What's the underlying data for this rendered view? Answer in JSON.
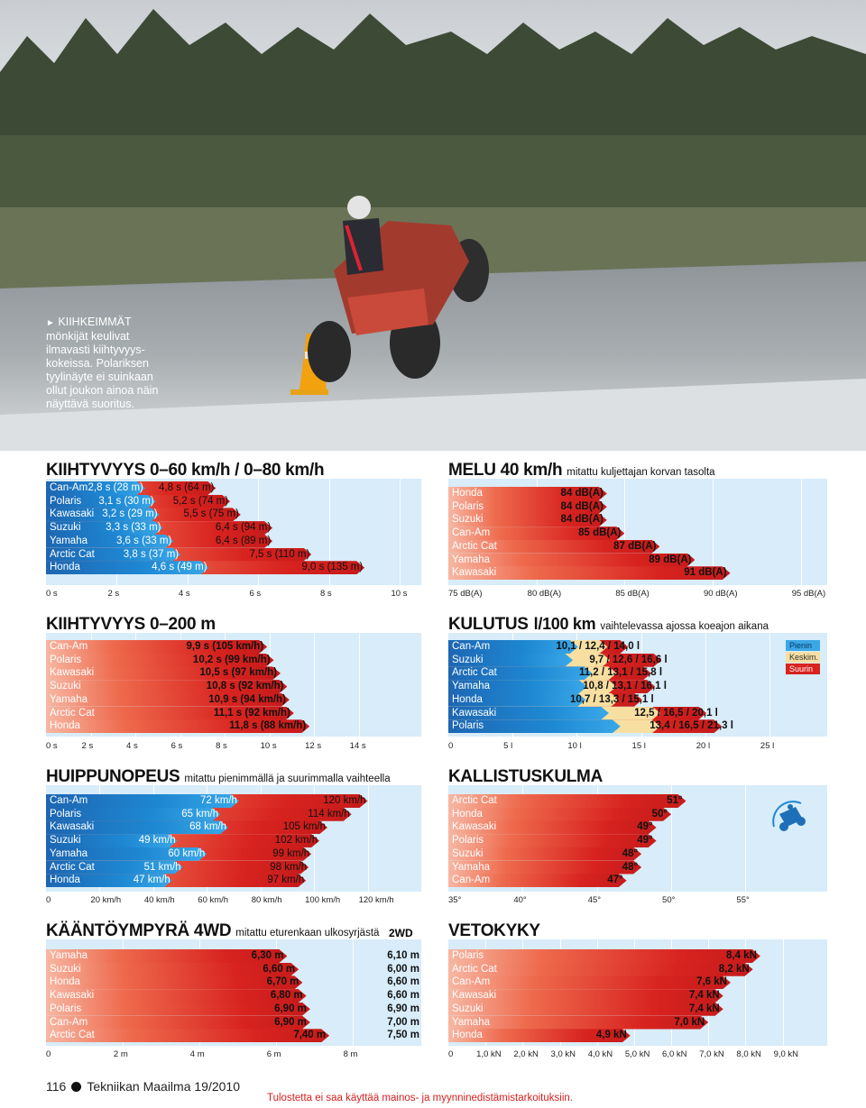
{
  "caption": {
    "marker": "►",
    "text": "KIIHKEIMMÄT mönkijät keulivat ilmavasti kiihtyvyys­kokeissa. Polariksen tyylinäyte ei suin­kaan ollut joukon ainoa näin näyttävä suoritus."
  },
  "footer": {
    "page": "116",
    "magazine": "Tekniikan Maailma 19/2010",
    "notice": "Tulostetta ei saa käyttää mainos- ja myynninedistämistarkoituksiin."
  },
  "colors": {
    "panel": "#d8ecf9",
    "red": "#d8231f",
    "blue": "#1e88d3",
    "notice": "#d81e1e"
  },
  "icons": {
    "tilt": "atv-tilt-icon",
    "photo": "atv-rider-photo"
  },
  "chart_data": [
    {
      "id": "kiihtyvyys60",
      "type": "bar",
      "title": "KIIHTYVYYS 0–60 km/h / 0–80 km/h",
      "categories": [
        "Can-Am",
        "Polaris",
        "Kawasaki",
        "Suzuki",
        "Yamaha",
        "Arctic Cat",
        "Honda"
      ],
      "series": [
        {
          "values": [
            2.8,
            3.1,
            3.2,
            3.3,
            3.6,
            3.8,
            4.6
          ],
          "labels": [
            "2,8 s (28 m)",
            "3,1 s (30 m)",
            "3,2 s (29 m)",
            "3,3 s (33 m)",
            "3,6 s (33 m)",
            "3,8 s (37 m)",
            "4,6 s (49 m)"
          ]
        },
        {
          "values": [
            4.8,
            5.2,
            5.5,
            6.4,
            6.4,
            7.5,
            9.0
          ],
          "labels": [
            "4,8 s (64 m)",
            "5,2 s (74 m)",
            "5,5 s (75 m)",
            "6,4 s (94 m)",
            "6,4 s (89 m)",
            "7,5 s (110 m)",
            "9,0 s (135 m)"
          ]
        }
      ],
      "xlim": [
        0,
        10.6
      ],
      "ticks": [
        "0 s",
        "2 s",
        "4 s",
        "6 s",
        "8 s",
        "10 s"
      ],
      "tick_values": [
        0,
        2,
        4,
        6,
        8,
        10
      ]
    },
    {
      "id": "melu",
      "type": "bar",
      "title": "MELU 40 km/h",
      "subtitle": "mitattu kuljettajan korvan tasolta",
      "categories": [
        "Honda",
        "Polaris",
        "Suzuki",
        "Can-Am",
        "Arctic Cat",
        "Yamaha",
        "Kawasaki"
      ],
      "series": [
        {
          "values": [
            84,
            84,
            84,
            85,
            87,
            89,
            91
          ],
          "labels": [
            "84 dB(A)",
            "84 dB(A)",
            "84 dB(A)",
            "85 dB(A)",
            "87 dB(A)",
            "89 dB(A)",
            "91 dB(A)"
          ]
        }
      ],
      "xlim": [
        75,
        96.5
      ],
      "ticks": [
        "75 dB(A)",
        "80 dB(A)",
        "85 dB(A)",
        "90 dB(A)",
        "95 dB(A)"
      ],
      "tick_values": [
        75,
        80,
        85,
        90,
        95
      ]
    },
    {
      "id": "kiihtyvyys200",
      "type": "bar",
      "title": "KIIHTYVYYS 0–200 m",
      "categories": [
        "Can-Am",
        "Polaris",
        "Kawasaki",
        "Suzuki",
        "Yamaha",
        "Arctic Cat",
        "Honda"
      ],
      "series": [
        {
          "values": [
            9.9,
            10.2,
            10.5,
            10.8,
            10.9,
            11.1,
            11.8
          ],
          "labels": [
            "9,9 s (105 km/h)",
            "10,2 s (99 km/h)",
            "10,5 s (97 km/h)",
            "10,8 s (92 km/h)",
            "10,9 s (94 km/h)",
            "11,1 s (92 km/h)",
            "11,8 s (88 km/h)"
          ]
        }
      ],
      "xlim": [
        0,
        16.8
      ],
      "ticks": [
        "0 s",
        "2 s",
        "4 s",
        "6 s",
        "8 s",
        "10 s",
        "12 s",
        "14 s"
      ],
      "tick_values": [
        0,
        2,
        4,
        6,
        8,
        10,
        12,
        14
      ]
    },
    {
      "id": "kulutus",
      "type": "bar",
      "title": "KULUTUS",
      "unit": "l/100 km",
      "subtitle": "vaihtelevassa ajossa koeajon aikana",
      "categories": [
        "Can-Am",
        "Suzuki",
        "Arctic Cat",
        "Yamaha",
        "Honda",
        "Kawasaki",
        "Polaris"
      ],
      "series": [
        {
          "name": "Pienin",
          "values": [
            10.1,
            9.7,
            11.2,
            10.8,
            10.7,
            12.5,
            13.4
          ]
        },
        {
          "name": "Keskim.",
          "values": [
            12.4,
            12.6,
            13.1,
            13.1,
            13.3,
            16.5,
            16.5
          ]
        },
        {
          "name": "Suurin",
          "values": [
            14.0,
            16.6,
            15.8,
            16.1,
            15.1,
            20.1,
            21.3
          ]
        }
      ],
      "labels": [
        "10,1 / 12,4 / 14,0 l",
        "9,7 / 12,6 / 16,6 l",
        "11,2 / 13,1 / 15,8 l",
        "10,8 / 13,1 / 16,1 l",
        "10,7 / 13,3 / 15,1 l",
        "12,5 / 16,5 / 20,1 l",
        "13,4 / 16,5 / 21,3 l"
      ],
      "xlim": [
        0,
        29.5
      ],
      "ticks": [
        "0",
        "5 l",
        "10 l",
        "15 l",
        "20 l",
        "25 l"
      ],
      "tick_values": [
        0,
        5,
        10,
        15,
        20,
        25
      ]
    },
    {
      "id": "huippunopeus",
      "type": "bar",
      "title": "HUIPPUNOPEUS",
      "subtitle": "mitattu pienimmällä ja suurimmalla vaihteella",
      "categories": [
        "Can-Am",
        "Polaris",
        "Kawasaki",
        "Suzuki",
        "Yamaha",
        "Arctic Cat",
        "Honda"
      ],
      "series": [
        {
          "values": [
            72,
            65,
            68,
            49,
            60,
            51,
            47
          ],
          "labels": [
            "72 km/h",
            "65 km/h",
            "68 km/h",
            "49 km/h",
            "60 km/h",
            "51 km/h",
            "47 km/h"
          ]
        },
        {
          "values": [
            120,
            114,
            105,
            102,
            99,
            98,
            97
          ],
          "labels": [
            "120 km/h",
            "114 km/h",
            "105 km/h",
            "102 km/h",
            "99 km/h",
            "98 km/h",
            "97 km/h"
          ]
        }
      ],
      "xlim": [
        0,
        140
      ],
      "ticks": [
        "0",
        "20 km/h",
        "40 km/h",
        "60 km/h",
        "80 km/h",
        "100 km/h",
        "120 km/h"
      ],
      "tick_values": [
        0,
        20,
        40,
        60,
        80,
        100,
        120
      ]
    },
    {
      "id": "kallistus",
      "type": "bar",
      "title": "KALLISTUSKULMA",
      "categories": [
        "Arctic Cat",
        "Honda",
        "Kawasaki",
        "Polaris",
        "Suzuki",
        "Yamaha",
        "Can-Am"
      ],
      "series": [
        {
          "values": [
            51,
            50,
            49,
            49,
            48,
            48,
            47
          ],
          "labels": [
            "51°",
            "50°",
            "49°",
            "49°",
            "48°",
            "48°",
            "47°"
          ]
        }
      ],
      "xlim": [
        35,
        60.5
      ],
      "ticks": [
        "35°",
        "40°",
        "45°",
        "50°",
        "55°"
      ],
      "tick_values": [
        35,
        40,
        45,
        50,
        55
      ]
    },
    {
      "id": "kaantoympyra",
      "type": "bar",
      "title": "KÄÄNTÖYMPYRÄ 4WD",
      "subtitle": "mitattu eturenkaan ulkosyrjästä",
      "extra_header": "2WD",
      "categories": [
        "Yamaha",
        "Suzuki",
        "Honda",
        "Kawasaki",
        "Polaris",
        "Can-Am",
        "Arctic Cat"
      ],
      "series": [
        {
          "name": "4WD",
          "values": [
            6.3,
            6.6,
            6.7,
            6.8,
            6.9,
            6.9,
            7.4
          ],
          "labels": [
            "6,30 m",
            "6,60 m",
            "6,70 m",
            "6,80 m",
            "6,90 m",
            "6,90 m",
            "7,40 m"
          ]
        },
        {
          "name": "2WD",
          "values": [
            6.1,
            6.0,
            6.6,
            6.6,
            6.9,
            7.0,
            7.5
          ],
          "labels": [
            "6,10 m",
            "6,00 m",
            "6,60 m",
            "6,60 m",
            "6,90 m",
            "7,00 m",
            "7,50 m"
          ]
        }
      ],
      "xlim": [
        0,
        9.8
      ],
      "ticks": [
        "0",
        "2 m",
        "4 m",
        "6 m",
        "8 m"
      ],
      "tick_values": [
        0,
        2,
        4,
        6,
        8
      ]
    },
    {
      "id": "vetokyky",
      "type": "bar",
      "title": "VETOKYKY",
      "categories": [
        "Polaris",
        "Arctic Cat",
        "Can-Am",
        "Kawasaki",
        "Suzuki",
        "Yamaha",
        "Honda"
      ],
      "series": [
        {
          "values": [
            8.4,
            8.2,
            7.6,
            7.4,
            7.4,
            7.0,
            4.9
          ],
          "labels": [
            "8,4 kN",
            "8,2 kN",
            "7,6 kN",
            "7,4 kN",
            "7,4 kN",
            "7,0 kN",
            "4,9 kN"
          ]
        }
      ],
      "xlim": [
        0,
        10.2
      ],
      "ticks": [
        "0",
        "1,0 kN",
        "2,0 kN",
        "3,0 kN",
        "4,0 kN",
        "5,0 kN",
        "6,0 kN",
        "7,0 kN",
        "8,0 kN",
        "9,0 kN"
      ],
      "tick_values": [
        0,
        1,
        2,
        3,
        4,
        5,
        6,
        7,
        8,
        9
      ]
    }
  ]
}
